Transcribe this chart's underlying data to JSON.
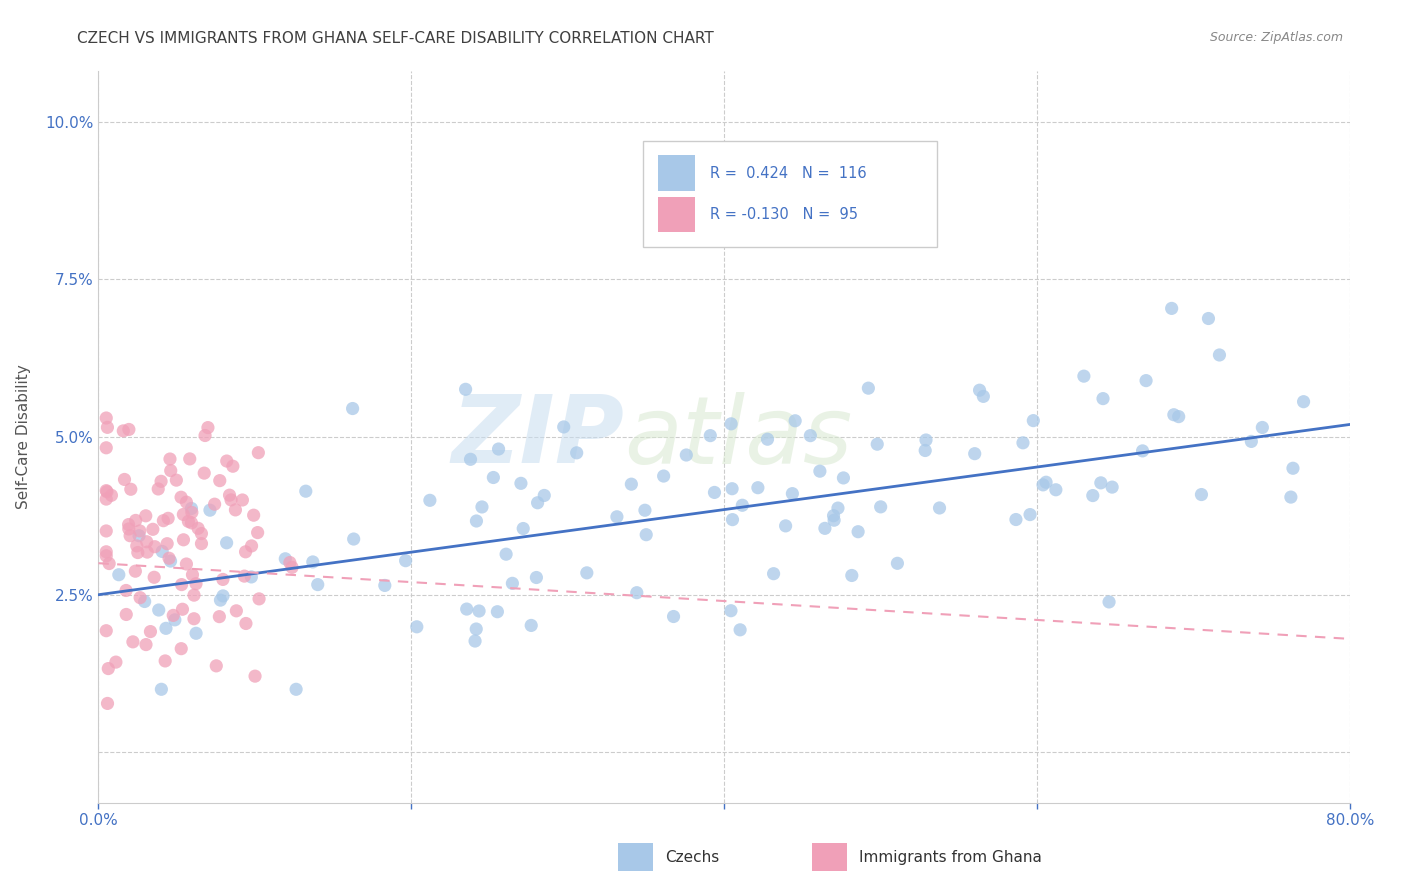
{
  "title": "CZECH VS IMMIGRANTS FROM GHANA SELF-CARE DISABILITY CORRELATION CHART",
  "source": "Source: ZipAtlas.com",
  "ylabel": "Self-Care Disability",
  "xlim": [
    0.0,
    0.8
  ],
  "ylim": [
    -0.008,
    0.108
  ],
  "legend_r_czech": "R =  0.424",
  "legend_n_czech": "N =  116",
  "legend_r_ghana": "R = -0.130",
  "legend_n_ghana": "N =  95",
  "czech_color": "#a8c8e8",
  "ghana_color": "#f0a0b8",
  "czech_line_color": "#4472c4",
  "ghana_line_color": "#f0a0b8",
  "background_color": "#ffffff",
  "grid_color": "#cccccc",
  "title_color": "#404040",
  "axis_label_color": "#4472c4",
  "watermark_zip": "ZIP",
  "watermark_atlas": "atlas",
  "czech_seed": 10,
  "ghana_seed": 20
}
